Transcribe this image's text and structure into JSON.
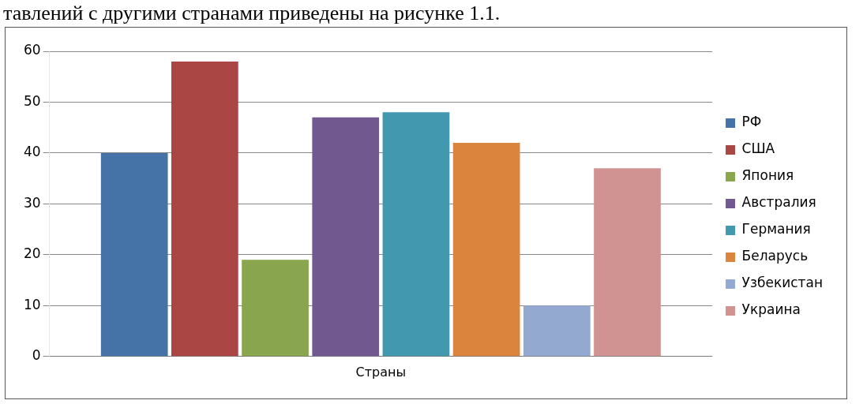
{
  "chart_data": {
    "type": "bar",
    "annotations": [
      "тавлений с другими странами приведены на рисунке 1.1."
    ],
    "categories": [
      "Страны"
    ],
    "series": [
      {
        "name": "РФ",
        "color": "#4572a7",
        "values": [
          40
        ]
      },
      {
        "name": "США",
        "color": "#aa4643",
        "values": [
          58
        ]
      },
      {
        "name": "Япония",
        "color": "#89a54e",
        "values": [
          19
        ]
      },
      {
        "name": "Австралия",
        "color": "#71588f",
        "values": [
          47
        ]
      },
      {
        "name": "Германия",
        "color": "#4198af",
        "values": [
          48
        ]
      },
      {
        "name": "Беларусь",
        "color": "#db843d",
        "values": [
          42
        ]
      },
      {
        "name": "Узбекистан",
        "color": "#93a9cf",
        "values": [
          10
        ]
      },
      {
        "name": "Украина",
        "color": "#d19392",
        "values": [
          37
        ]
      }
    ],
    "ylim": [
      0,
      60
    ],
    "yticks": [
      0,
      10,
      20,
      30,
      40,
      50,
      60
    ],
    "grid": "y",
    "legend": "right"
  }
}
